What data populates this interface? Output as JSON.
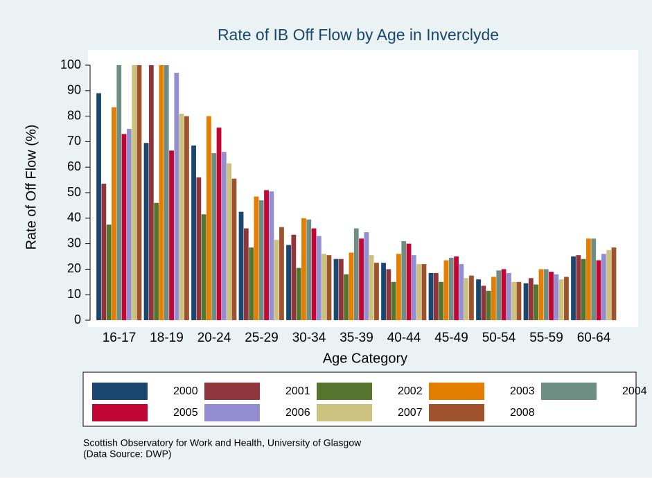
{
  "chart_data": {
    "type": "bar",
    "title": "Rate of IB Off Flow by Age in Inverclyde",
    "x_label": "Age Category",
    "y_label": "Rate of Off Flow (%)",
    "footnote": [
      "Scottish Observatory for Work and Health, University of Glasgow",
      "(Data Source: DWP)"
    ],
    "categories": [
      "16-17",
      "18-19",
      "20-24",
      "25-29",
      "30-34",
      "35-39",
      "40-44",
      "45-49",
      "50-54",
      "55-59",
      "60-64"
    ],
    "series": [
      {
        "name": "2000",
        "color": "#1a476f",
        "values": [
          89,
          69.5,
          68.5,
          42.5,
          29.5,
          24,
          22.5,
          18.5,
          16,
          14.5,
          25
        ]
      },
      {
        "name": "2001",
        "color": "#90353b",
        "values": [
          53.5,
          100,
          56,
          36,
          33.5,
          24,
          20,
          18.5,
          13.5,
          16.5,
          25.5
        ]
      },
      {
        "name": "2002",
        "color": "#55752f",
        "values": [
          37.5,
          46,
          41.5,
          28.5,
          20.5,
          18,
          15,
          15,
          11.5,
          14,
          24
        ]
      },
      {
        "name": "2003",
        "color": "#e37e00",
        "values": [
          83.5,
          100,
          80,
          48.5,
          40,
          26.5,
          26,
          23.5,
          17,
          20,
          32
        ]
      },
      {
        "name": "2004",
        "color": "#6e8e84",
        "values": [
          100,
          100,
          65.5,
          47,
          39.5,
          36,
          31,
          24.5,
          19.5,
          20,
          32
        ]
      },
      {
        "name": "2005",
        "color": "#c10534",
        "values": [
          73,
          66.5,
          75.5,
          51,
          36,
          32,
          30,
          25,
          20,
          19,
          23.5
        ]
      },
      {
        "name": "2006",
        "color": "#938dd2",
        "values": [
          75,
          97,
          66,
          50.5,
          33,
          34.5,
          25.5,
          22,
          18.5,
          18,
          26
        ]
      },
      {
        "name": "2007",
        "color": "#cac27e",
        "values": [
          100,
          81,
          61.5,
          31.5,
          26,
          25.5,
          22,
          16.5,
          15,
          16,
          27.5
        ]
      },
      {
        "name": "2008",
        "color": "#a0522d",
        "values": [
          100,
          80,
          55.5,
          36.5,
          25.5,
          22.5,
          22,
          17.5,
          15,
          17,
          28.5
        ]
      }
    ],
    "ylim": [
      0,
      100
    ],
    "yticks": [
      0,
      10,
      20,
      30,
      40,
      50,
      60,
      70,
      80,
      90,
      100
    ]
  }
}
